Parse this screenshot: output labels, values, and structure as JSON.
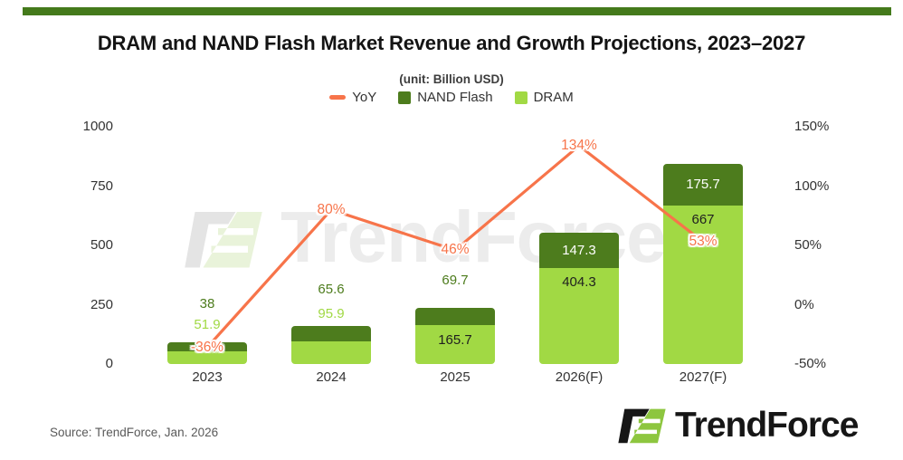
{
  "page": {
    "title": "DRAM and NAND Flash Market Revenue and Growth Projections, 2023–2027",
    "subtitle": "(unit: Billion USD)",
    "source": "Source: TrendForce, Jan. 2026",
    "watermark": "TrendForce",
    "logo_text": "TrendForce"
  },
  "colors": {
    "accent_bar": "#447a1b",
    "nand": "#4d7c1d",
    "dram": "#a1d944",
    "yoy": "#f7744a",
    "value_label_dark": "#1f1f1f",
    "value_label_white": "#ffffff",
    "axis_text": "#333333",
    "source_text": "#595959",
    "logo_black": "#161616",
    "logo_green": "#8dc63f",
    "watermark_gray": "#ececec",
    "watermark_green": "#e9f3da"
  },
  "legend": [
    {
      "label": "YoY",
      "swatch": "line",
      "color": "#f7744a"
    },
    {
      "label": "NAND Flash",
      "swatch": "square",
      "color": "#4d7c1d"
    },
    {
      "label": "DRAM",
      "swatch": "square",
      "color": "#a1d944"
    }
  ],
  "chart_data": {
    "type": "bar",
    "subtype": "stacked-bars-with-yoy-line",
    "title": "DRAM and NAND Flash Market Revenue and Growth Projections, 2023–2027",
    "unit_note": "(unit: Billion USD)",
    "categories": [
      "2023",
      "2024",
      "2025",
      "2026(F)",
      "2027(F)"
    ],
    "series": [
      {
        "name": "DRAM",
        "type": "bar",
        "stack": "revenue",
        "color": "#a1d944",
        "values": [
          51.9,
          95.9,
          165.7,
          404.3,
          667
        ]
      },
      {
        "name": "NAND Flash",
        "type": "bar",
        "stack": "revenue",
        "color": "#4d7c1d",
        "values": [
          38,
          65.6,
          69.7,
          147.3,
          175.7
        ]
      },
      {
        "name": "YoY",
        "type": "line",
        "yaxis": "right",
        "color": "#f7744a",
        "values_pct": [
          -36,
          80,
          46,
          134,
          53
        ],
        "labels": [
          "-36%",
          "80%",
          "46%",
          "134%",
          "53%"
        ]
      }
    ],
    "left_axis": {
      "ticks": [
        0,
        250,
        500,
        750,
        1000
      ],
      "range": [
        0,
        1000
      ]
    },
    "right_axis": {
      "ticks": [
        "-50%",
        "0%",
        "50%",
        "100%",
        "150%"
      ],
      "range_pct": [
        -50,
        150
      ]
    },
    "grid": false,
    "legend_position": "top-center"
  }
}
